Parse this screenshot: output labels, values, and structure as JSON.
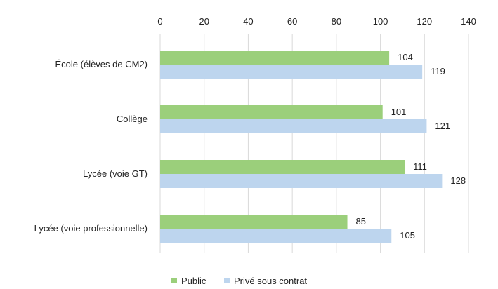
{
  "chart_data": {
    "type": "bar",
    "orientation": "horizontal",
    "categories": [
      "École (élèves de CM2)",
      "Collège",
      "Lycée (voie GT)",
      "Lycée (voie professionnelle)"
    ],
    "series": [
      {
        "name": "Public",
        "values": [
          104,
          101,
          111,
          85
        ],
        "color": "#9bcf7b"
      },
      {
        "name": "Privé sous contrat",
        "values": [
          119,
          121,
          128,
          105
        ],
        "color": "#bdd5ee"
      }
    ],
    "xlim": [
      0,
      140
    ],
    "xticks": [
      "0",
      "20",
      "40",
      "60",
      "80",
      "100",
      "120",
      "140"
    ],
    "x_axis_position": "top",
    "grid": true,
    "legend_position": "bottom"
  }
}
